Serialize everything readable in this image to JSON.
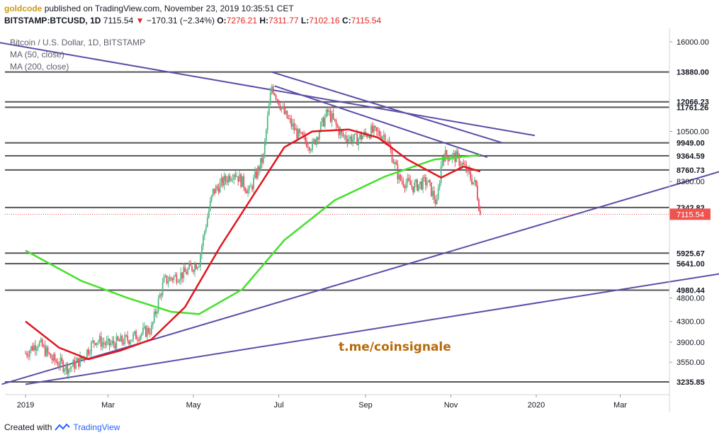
{
  "header": {
    "user": "goldcode",
    "published_text": "published on TradingView.com, November 23, 2019 10:35:51 CET",
    "symbol": "BITSTAMP:BTCUSD, 1D",
    "last": "7115.54",
    "change": "−170.31 (−2.34%)",
    "o_label": "O:",
    "o_value": "7276.21",
    "h_label": "H:",
    "h_value": "7311.77",
    "l_label": "L:",
    "l_value": "7102.16",
    "c_label": "C:",
    "c_value": "7115.54"
  },
  "legend": {
    "title": "Bitcoin / U.S. Dollar, 1D, BITSTAMP",
    "ma50": "MA (50, close)",
    "ma200": "MA (200, close)"
  },
  "watermark": "t.me/coinsignale",
  "footer": {
    "created_with": "Created with",
    "brand": "TradingView"
  },
  "colors": {
    "up": "#53b987",
    "down": "#eb4d5c",
    "ma50": "#e0161e",
    "ma200": "#45e02a",
    "trendline": "#5b4ea8",
    "level": "#555555",
    "price_tag": "#ef5350"
  },
  "chart_data": {
    "type": "candlestick",
    "x_ticks": [
      "2019",
      "Mar",
      "May",
      "Jul",
      "Sep",
      "Nov",
      "2020",
      "Mar"
    ],
    "y_ticks": [
      "16000.00",
      "10500.00",
      "8300.00",
      "4800.00",
      "4300.00",
      "3900.00",
      "3550.00"
    ],
    "levels": [
      "13880.00",
      "12066.23",
      "11761.26",
      "9949.00",
      "9364.59",
      "8760.73",
      "7342.82",
      "5925.67",
      "5641.00",
      "4980.44",
      "3235.85"
    ],
    "last_price": "7115.54",
    "close_series": [
      [
        "2019-01-01",
        3700
      ],
      [
        "2019-01-10",
        3900
      ],
      [
        "2019-01-20",
        3600
      ],
      [
        "2019-02-01",
        3450
      ],
      [
        "2019-02-10",
        3600
      ],
      [
        "2019-02-20",
        3950
      ],
      [
        "2019-03-01",
        3850
      ],
      [
        "2019-03-15",
        3950
      ],
      [
        "2019-04-01",
        4150
      ],
      [
        "2019-04-10",
        5200
      ],
      [
        "2019-04-25",
        5400
      ],
      [
        "2019-05-05",
        5700
      ],
      [
        "2019-05-15",
        7900
      ],
      [
        "2019-05-30",
        8700
      ],
      [
        "2019-06-10",
        7900
      ],
      [
        "2019-06-20",
        9300
      ],
      [
        "2019-06-26",
        13000
      ],
      [
        "2019-07-05",
        11400
      ],
      [
        "2019-07-15",
        10300
      ],
      [
        "2019-07-25",
        9800
      ],
      [
        "2019-08-05",
        11500
      ],
      [
        "2019-08-15",
        10300
      ],
      [
        "2019-08-25",
        10100
      ],
      [
        "2019-09-05",
        10500
      ],
      [
        "2019-09-15",
        10300
      ],
      [
        "2019-09-25",
        8400
      ],
      [
        "2019-10-05",
        8100
      ],
      [
        "2019-10-15",
        8300
      ],
      [
        "2019-10-22",
        7450
      ],
      [
        "2019-10-26",
        9400
      ],
      [
        "2019-11-05",
        9300
      ],
      [
        "2019-11-12",
        8750
      ],
      [
        "2019-11-19",
        8100
      ],
      [
        "2019-11-22",
        7115
      ]
    ],
    "ma50_series": [
      [
        "2019-01-01",
        4300
      ],
      [
        "2019-01-25",
        3800
      ],
      [
        "2019-02-15",
        3600
      ],
      [
        "2019-03-10",
        3750
      ],
      [
        "2019-04-01",
        3950
      ],
      [
        "2019-04-25",
        4600
      ],
      [
        "2019-05-20",
        6100
      ],
      [
        "2019-06-15",
        7950
      ],
      [
        "2019-07-05",
        9750
      ],
      [
        "2019-07-25",
        10500
      ],
      [
        "2019-08-20",
        10600
      ],
      [
        "2019-09-10",
        10200
      ],
      [
        "2019-10-01",
        9200
      ],
      [
        "2019-10-25",
        8450
      ],
      [
        "2019-11-10",
        8900
      ],
      [
        "2019-11-22",
        8700
      ]
    ],
    "ma200_series": [
      [
        "2019-01-01",
        6000
      ],
      [
        "2019-02-10",
        5200
      ],
      [
        "2019-03-15",
        4800
      ],
      [
        "2019-04-15",
        4500
      ],
      [
        "2019-05-05",
        4450
      ],
      [
        "2019-06-05",
        5000
      ],
      [
        "2019-07-05",
        6300
      ],
      [
        "2019-08-10",
        7600
      ],
      [
        "2019-09-15",
        8500
      ],
      [
        "2019-10-20",
        9200
      ],
      [
        "2019-11-22",
        9400
      ]
    ]
  }
}
